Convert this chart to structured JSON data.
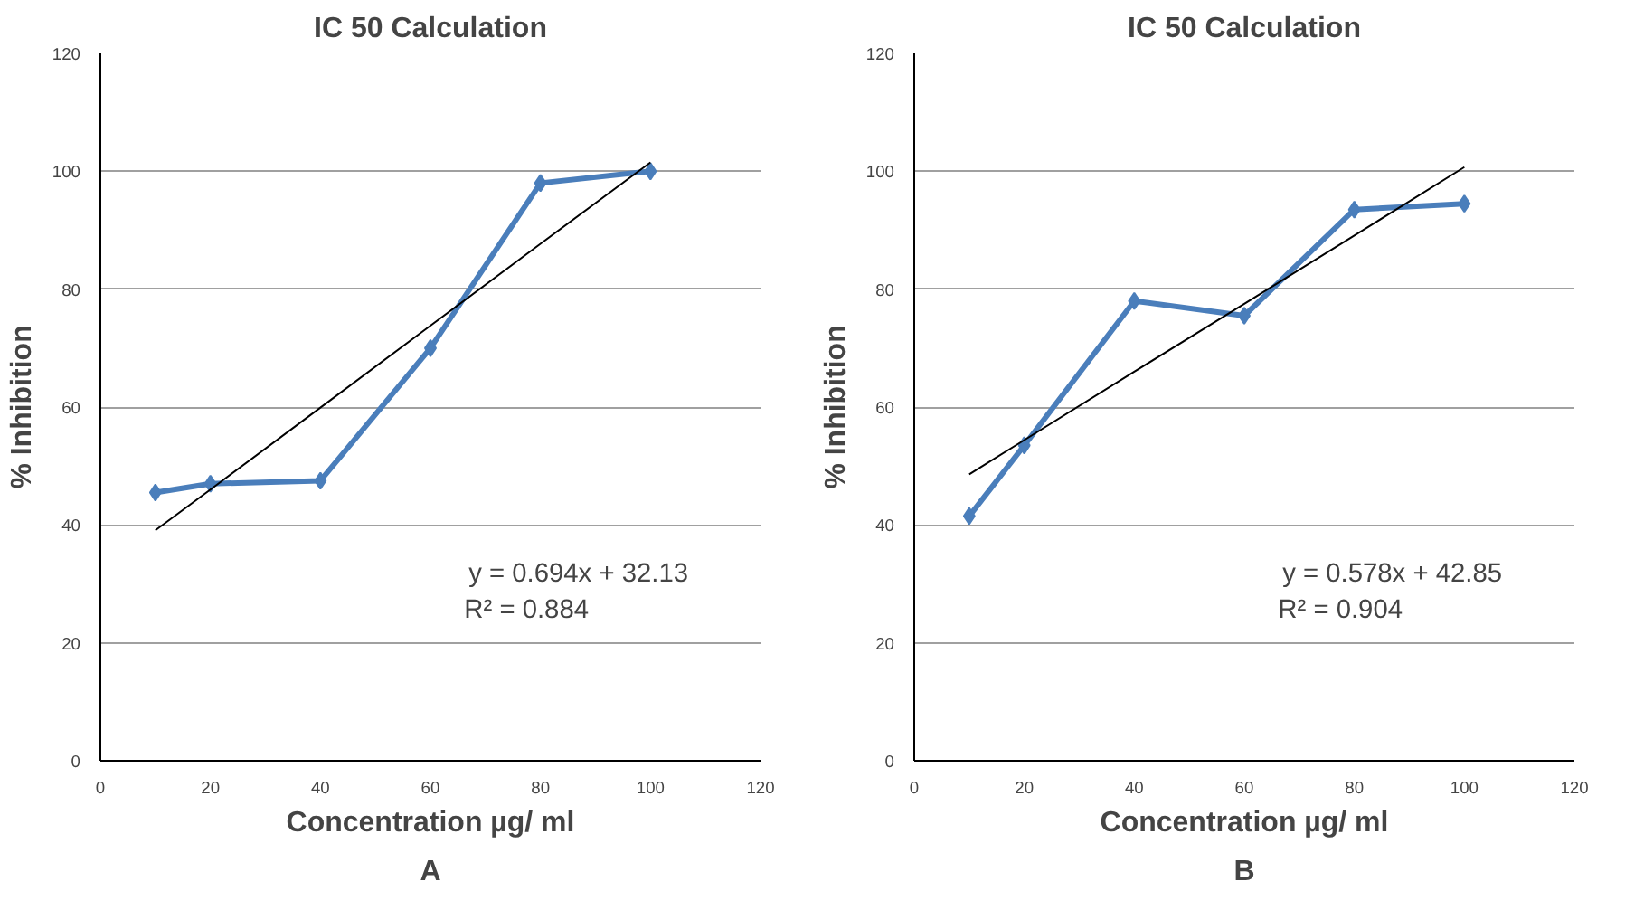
{
  "chart_data": [
    {
      "type": "line",
      "title": "IC 50 Calculation",
      "xlabel": "Concentration µg/ ml",
      "ylabel": "% Inhibition",
      "x": [
        10,
        20,
        40,
        60,
        80,
        100
      ],
      "series": [
        {
          "color": "#4a7ebb",
          "values": [
            45.5,
            47,
            47.5,
            70,
            98,
            100
          ],
          "marker": "diamond"
        },
        {
          "type": "line",
          "color": "#000000",
          "values": [
            39.1,
            46.0,
            59.9,
            73.8,
            87.7,
            101.5
          ],
          "marker": "none"
        }
      ],
      "xlim": [
        0,
        120
      ],
      "xticks": [
        0,
        20,
        40,
        60,
        80,
        100,
        120
      ],
      "ylim": [
        0,
        120
      ],
      "yticks": [
        0,
        20,
        40,
        60,
        80,
        100,
        120
      ],
      "grid": "y",
      "annotations": [
        "y = 0.694x + 32.13",
        "R² = 0.884",
        "A"
      ]
    },
    {
      "type": "line",
      "title": "IC 50 Calculation",
      "xlabel": "Concentration µg/ ml",
      "ylabel": "% Inhibition",
      "x": [
        10,
        20,
        40,
        60,
        80,
        100
      ],
      "series": [
        {
          "color": "#4a7ebb",
          "values": [
            41.5,
            53.5,
            78,
            75.5,
            93.5,
            94.5
          ],
          "marker": "diamond"
        },
        {
          "type": "line",
          "color": "#000000",
          "values": [
            48.6,
            54.4,
            66.0,
            77.5,
            89.1,
            100.7
          ],
          "marker": "none"
        }
      ],
      "xlim": [
        0,
        120
      ],
      "xticks": [
        0,
        20,
        40,
        60,
        80,
        100,
        120
      ],
      "ylim": [
        0,
        120
      ],
      "yticks": [
        0,
        20,
        40,
        60,
        80,
        100,
        120
      ],
      "grid": "y",
      "annotations": [
        "y = 0.578x + 42.85",
        "R² = 0.904",
        "B"
      ]
    }
  ]
}
